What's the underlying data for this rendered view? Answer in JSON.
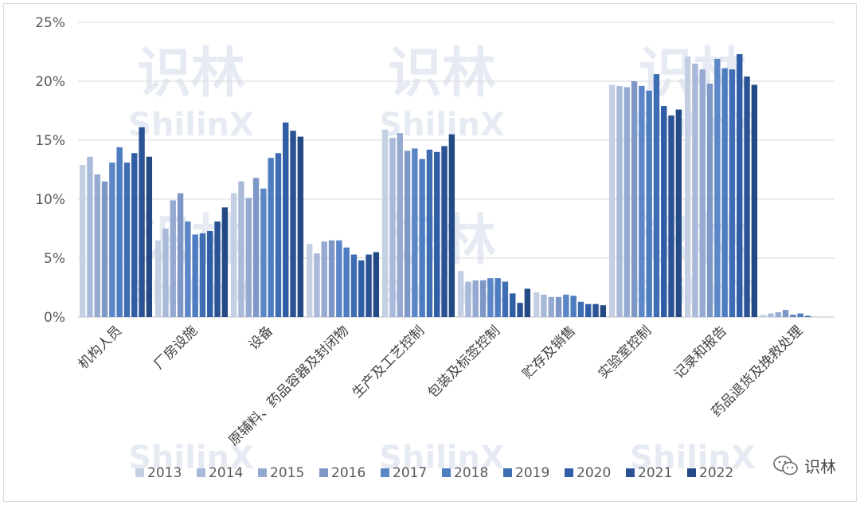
{
  "chart_data": {
    "type": "bar",
    "ylim": [
      0,
      25
    ],
    "yticks": [
      "0%",
      "5%",
      "10%",
      "15%",
      "20%",
      "25%"
    ],
    "ytick_values": [
      0,
      5,
      10,
      15,
      20,
      25
    ],
    "grid": true,
    "legend_position": "bottom",
    "categories": [
      "机构人员",
      "厂房设施",
      "设备",
      "原辅料、药品容器及封闭物",
      "生产及工艺控制",
      "包装及标签控制",
      "贮存及销售",
      "实验室控制",
      "记录和报告",
      "药品退货及挽救处理"
    ],
    "series": [
      {
        "name": "2013",
        "color": "#c5cfe3",
        "values": [
          12.9,
          6.5,
          10.5,
          6.2,
          15.9,
          3.9,
          2.1,
          19.7,
          22.1,
          0.2
        ]
      },
      {
        "name": "2014",
        "color": "#a9b9d9",
        "values": [
          13.6,
          7.5,
          11.5,
          5.4,
          15.2,
          3.0,
          1.9,
          19.6,
          21.5,
          0.3
        ]
      },
      {
        "name": "2015",
        "color": "#95a9d1",
        "values": [
          12.1,
          9.9,
          10.1,
          6.4,
          15.6,
          3.1,
          1.7,
          19.5,
          21.0,
          0.4
        ]
      },
      {
        "name": "2016",
        "color": "#7d97c7",
        "values": [
          11.5,
          10.5,
          11.8,
          6.5,
          14.1,
          3.1,
          1.7,
          20.0,
          19.8,
          0.6
        ]
      },
      {
        "name": "2017",
        "color": "#5b86c8",
        "values": [
          13.1,
          8.1,
          10.9,
          6.5,
          14.3,
          3.3,
          1.9,
          19.6,
          21.9,
          0.2
        ]
      },
      {
        "name": "2018",
        "color": "#4e7cc1",
        "values": [
          14.4,
          7.0,
          13.5,
          5.9,
          13.4,
          3.3,
          1.8,
          19.2,
          21.1,
          0.3
        ]
      },
      {
        "name": "2019",
        "color": "#3f6db3",
        "values": [
          13.1,
          7.1,
          13.9,
          5.3,
          14.2,
          3.0,
          1.3,
          20.6,
          21.0,
          0.1
        ]
      },
      {
        "name": "2020",
        "color": "#2f5da6",
        "values": [
          13.9,
          7.3,
          16.5,
          4.8,
          14.0,
          2.0,
          1.1,
          17.9,
          22.3,
          0.0
        ]
      },
      {
        "name": "2021",
        "color": "#2a5294",
        "values": [
          16.1,
          8.1,
          15.8,
          5.3,
          14.5,
          1.2,
          1.1,
          17.1,
          20.4,
          0.0
        ]
      },
      {
        "name": "2022",
        "color": "#244a86",
        "values": [
          13.6,
          9.3,
          15.3,
          5.5,
          15.5,
          2.4,
          1.0,
          17.6,
          19.7,
          0.0
        ]
      }
    ]
  },
  "watermark": {
    "line1": "识林",
    "line2": "ShilinX"
  },
  "brand": {
    "icon": "wechat-icon",
    "label": "识林"
  }
}
